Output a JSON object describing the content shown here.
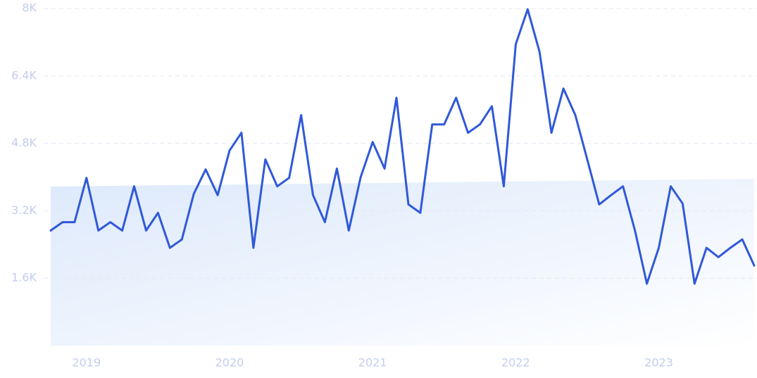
{
  "chart_data": {
    "type": "line",
    "x": [
      2018.75,
      2018.8333,
      2018.9167,
      2019,
      2019.0833,
      2019.1667,
      2019.25,
      2019.3333,
      2019.4167,
      2019.5,
      2019.5833,
      2019.6667,
      2019.75,
      2019.8333,
      2019.9167,
      2020,
      2020.0833,
      2020.1667,
      2020.25,
      2020.3333,
      2020.4167,
      2020.5,
      2020.5833,
      2020.6667,
      2020.75,
      2020.8333,
      2020.9167,
      2021,
      2021.0833,
      2021.1667,
      2021.25,
      2021.3333,
      2021.4167,
      2021.5,
      2021.5833,
      2021.6667,
      2021.75,
      2021.8333,
      2021.9167,
      2022,
      2022.0833,
      2022.1667,
      2022.25,
      2022.3333,
      2022.4167,
      2022.5,
      2022.5833,
      2022.6667,
      2022.75,
      2022.8333,
      2022.9167,
      2023,
      2023.0833,
      2023.1667,
      2023.25,
      2023.3333,
      2023.4167,
      2023.5,
      2023.5833,
      2023.6667
    ],
    "series": [
      {
        "color": "#3059d9",
        "values": [
          2730,
          2930,
          2930,
          3980,
          2730,
          2930,
          2730,
          3780,
          2730,
          3150,
          2320,
          2520,
          3600,
          4180,
          3570,
          4630,
          5050,
          2320,
          4420,
          3780,
          3980,
          5470,
          3570,
          2930,
          4200,
          2730,
          4000,
          4830,
          4200,
          5880,
          3350,
          3150,
          5250,
          5250,
          5880,
          5050,
          5250,
          5680,
          3780,
          7150,
          7980,
          6970,
          5050,
          6100,
          5470,
          4420,
          3350,
          3570,
          3780,
          2730,
          1470,
          2320,
          3780,
          3370,
          1470,
          2320,
          2100,
          2320,
          2520,
          1900
        ]
      }
    ],
    "xlim": [
      2018.75,
      2023.6667
    ],
    "xticks": [
      2019,
      2020,
      2021,
      2022,
      2023
    ],
    "ylim": [
      0,
      8000
    ],
    "yticks": [
      {
        "value": 1600,
        "label": "1.6K"
      },
      {
        "value": 3200,
        "label": "3.2K"
      },
      {
        "value": 4800,
        "label": "4.8K"
      },
      {
        "value": 6400,
        "label": "6.4K"
      },
      {
        "value": 8000,
        "label": "8K"
      }
    ],
    "grid": true
  }
}
